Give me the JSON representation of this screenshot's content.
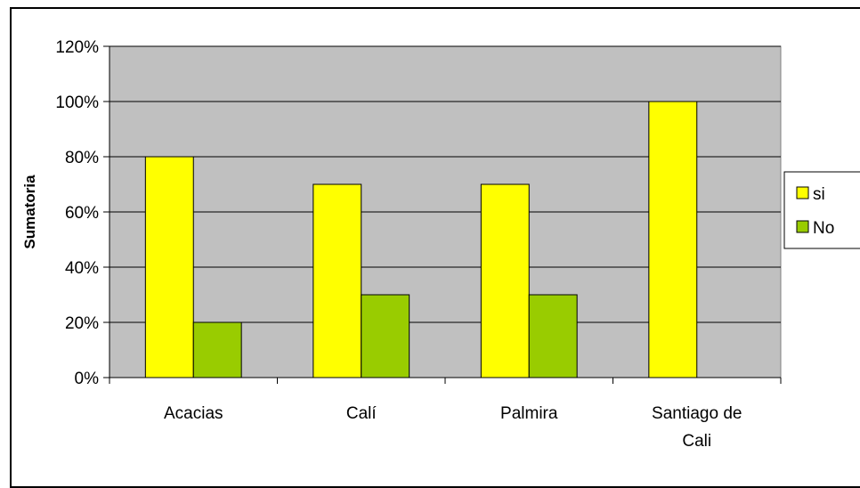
{
  "chart_data": {
    "type": "bar",
    "title": "",
    "xlabel": "",
    "ylabel": "Sumatoria",
    "categories": [
      [
        "Acacias"
      ],
      [
        "Calí"
      ],
      [
        "Palmira"
      ],
      [
        "Santiago de",
        "Cali"
      ]
    ],
    "series": [
      {
        "name": "si",
        "values": [
          80,
          70,
          70,
          100
        ],
        "color": "#FFFF00"
      },
      {
        "name": "No",
        "values": [
          20,
          30,
          30,
          0
        ],
        "color": "#99CC00"
      }
    ],
    "ylim": [
      0,
      120
    ],
    "yticks": [
      0,
      20,
      40,
      60,
      80,
      100,
      120
    ],
    "ytick_labels": [
      "0%",
      "20%",
      "40%",
      "60%",
      "80%",
      "100%",
      "120%"
    ],
    "grid": true,
    "plot_background": "#C0C0C0",
    "legend_position": "right"
  }
}
